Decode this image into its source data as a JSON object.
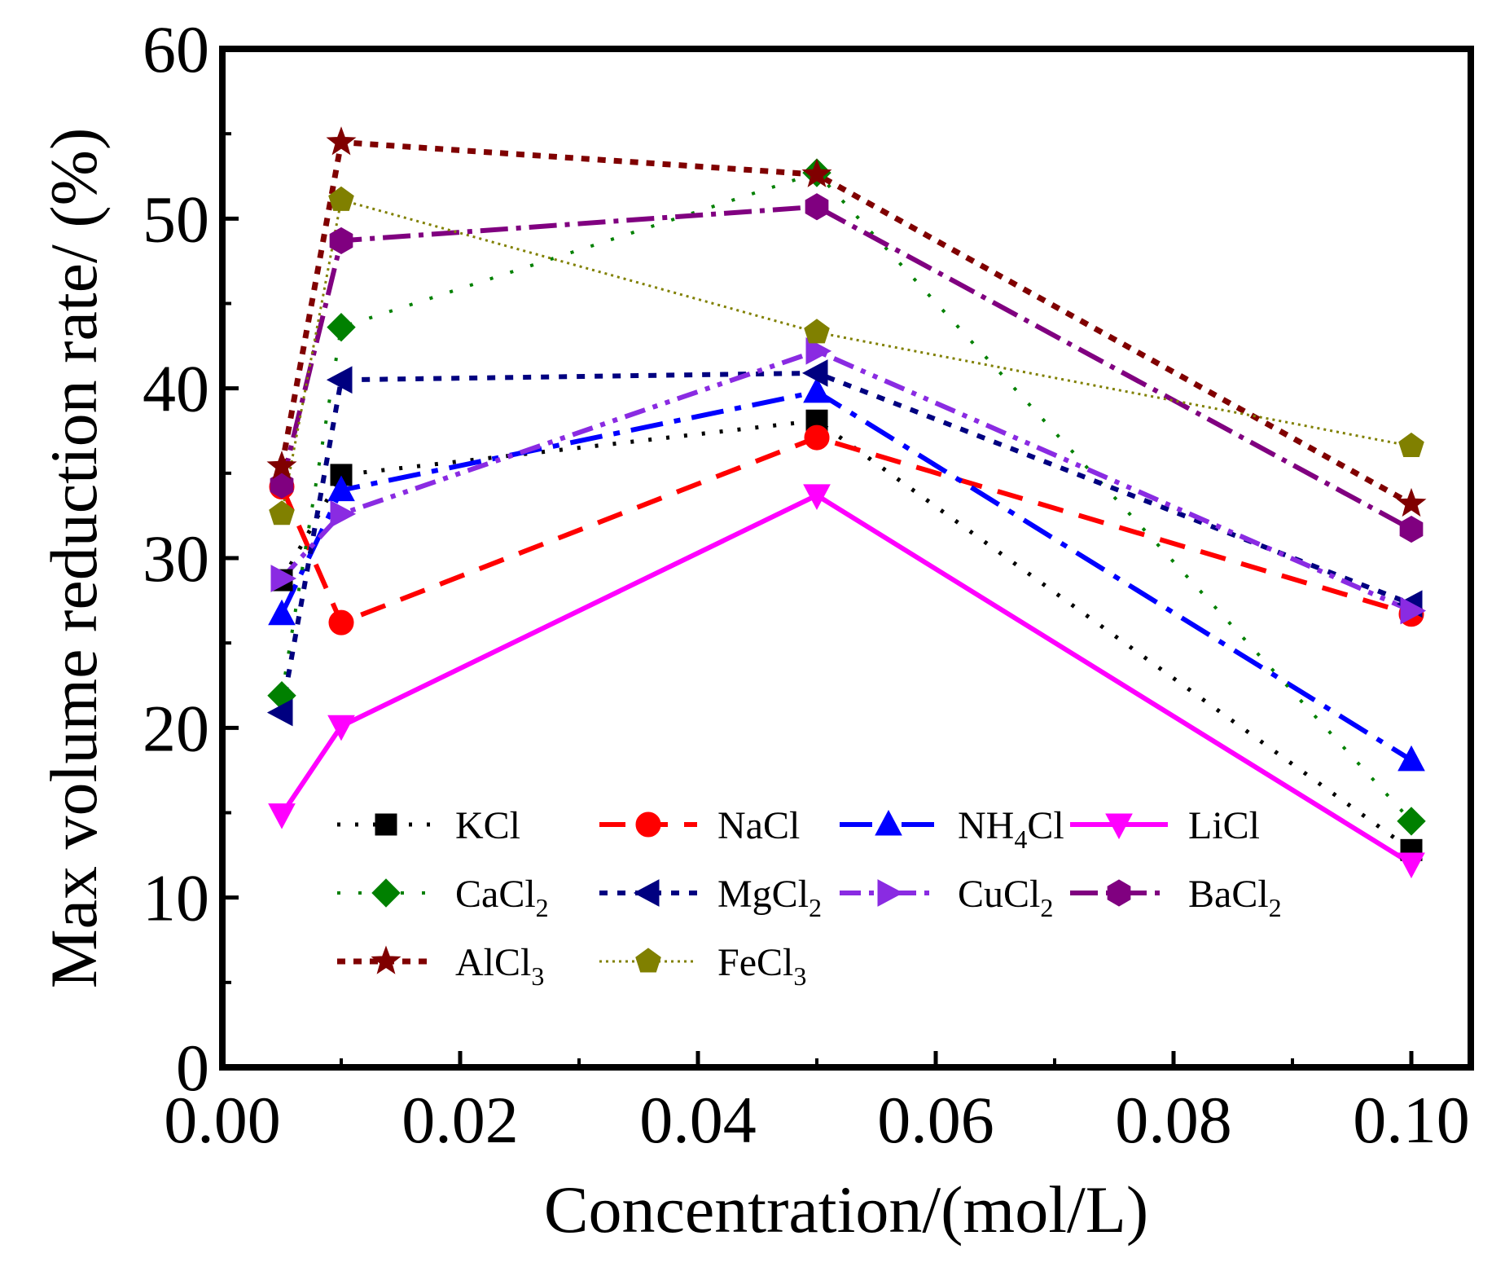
{
  "chart_data": {
    "type": "line",
    "title": "",
    "xlabel": "Concentration/(mol/L)",
    "ylabel": "Max volume reduction rate/ (%)",
    "xlim": [
      0.0,
      0.105
    ],
    "ylim": [
      0,
      60
    ],
    "xticks": [
      0.0,
      0.02,
      0.04,
      0.06,
      0.08,
      0.1
    ],
    "xtick_labels": [
      "0.00",
      "0.02",
      "0.04",
      "0.06",
      "0.08",
      "0.10"
    ],
    "yticks": [
      0,
      10,
      20,
      30,
      40,
      50,
      60
    ],
    "ytick_labels": [
      "0",
      "10",
      "20",
      "30",
      "40",
      "50",
      "60"
    ],
    "grid": false,
    "legend_position": "lower-left inside",
    "x": [
      0.005,
      0.01,
      0.05,
      0.1
    ],
    "series": [
      {
        "name": "KCl",
        "label_main": "KCl",
        "label_sub": "",
        "label_tail": "",
        "color": "#000000",
        "marker": "square",
        "dash": "dot",
        "values": [
          28.7,
          34.9,
          38.1,
          12.8
        ]
      },
      {
        "name": "NaCl",
        "label_main": "NaCl",
        "label_sub": "",
        "label_tail": "",
        "color": "#ff0000",
        "marker": "circle",
        "dash": "dash",
        "values": [
          34.2,
          26.2,
          37.1,
          26.7
        ]
      },
      {
        "name": "NH4Cl",
        "label_main": "NH",
        "label_sub": "4",
        "label_tail": "Cl",
        "color": "#0000ff",
        "marker": "triangle-up",
        "dash": "dashdot",
        "values": [
          26.7,
          34.0,
          39.8,
          18.1
        ]
      },
      {
        "name": "LiCl",
        "label_main": "LiCl",
        "label_sub": "",
        "label_tail": "",
        "color": "#ff00ff",
        "marker": "triangle-down",
        "dash": "solid",
        "values": [
          14.9,
          20.1,
          33.7,
          12.0
        ]
      },
      {
        "name": "CaCl2",
        "label_main": "CaCl",
        "label_sub": "2",
        "label_tail": "",
        "color": "#008000",
        "marker": "diamond",
        "dash": "sparse-dot",
        "values": [
          21.9,
          43.6,
          52.7,
          14.5
        ]
      },
      {
        "name": "MgCl2",
        "label_main": "MgCl",
        "label_sub": "2",
        "label_tail": "",
        "color": "#000080",
        "marker": "triangle-left",
        "dash": "short-dash",
        "values": [
          20.9,
          40.5,
          40.9,
          27.3
        ]
      },
      {
        "name": "CuCl2",
        "label_main": "CuCl",
        "label_sub": "2",
        "label_tail": "",
        "color": "#8a2be2",
        "marker": "triangle-right",
        "dash": "dashdotdot",
        "values": [
          28.8,
          32.6,
          42.2,
          26.9
        ]
      },
      {
        "name": "BaCl2",
        "label_main": "BaCl",
        "label_sub": "2",
        "label_tail": "",
        "color": "#800080",
        "marker": "hexagon",
        "dash": "dashdot-long",
        "values": [
          34.3,
          48.7,
          50.7,
          31.7
        ]
      },
      {
        "name": "AlCl3",
        "label_main": "AlCl",
        "label_sub": "3",
        "label_tail": "",
        "color": "#800000",
        "marker": "star",
        "dash": "short-dash-thick",
        "values": [
          35.4,
          54.5,
          52.6,
          33.2
        ]
      },
      {
        "name": "FeCl3",
        "label_main": "FeCl",
        "label_sub": "3",
        "label_tail": "",
        "color": "#808000",
        "marker": "pentagon",
        "dash": "fine-dot",
        "values": [
          32.6,
          51.1,
          43.3,
          36.6
        ]
      }
    ]
  }
}
